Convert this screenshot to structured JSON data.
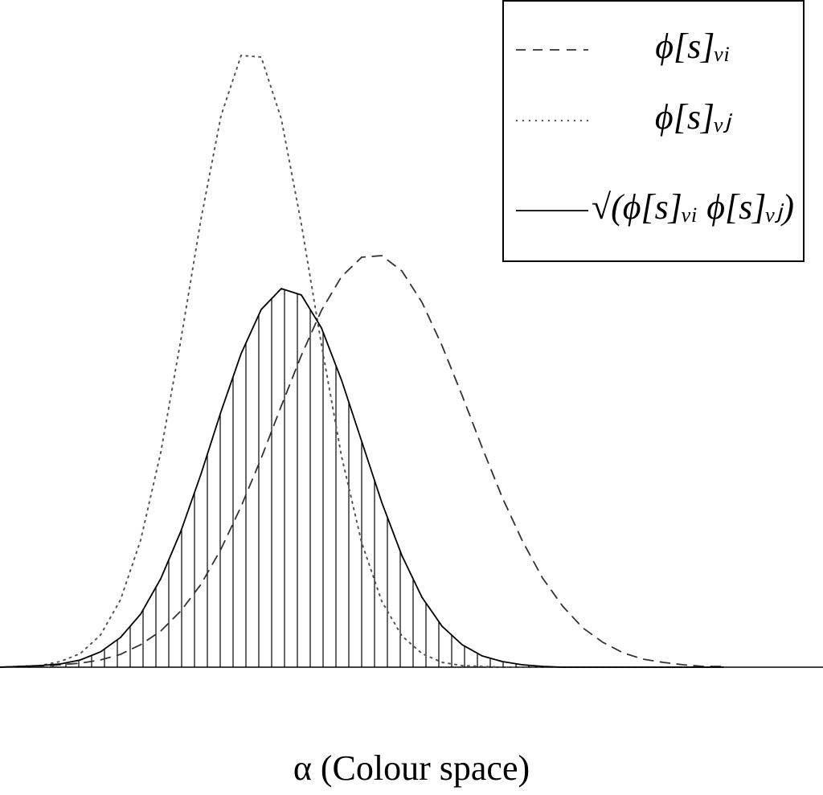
{
  "chart_data": {
    "type": "line",
    "x_label": "α (Colour space)",
    "x": [
      0,
      0.25,
      0.5,
      0.75,
      1,
      1.25,
      1.5,
      1.75,
      2,
      2.25,
      2.5,
      2.75,
      3,
      3.25,
      3.5,
      3.75,
      4,
      4.25,
      4.5,
      4.75,
      5,
      5.25,
      5.5,
      5.75,
      6,
      6.25,
      6.5,
      6.75,
      7,
      7.25,
      7.5,
      7.75,
      8,
      8.25,
      8.5,
      8.75,
      9
    ],
    "xlim": [
      0,
      10.24
    ],
    "ylim": [
      0,
      8.3
    ],
    "legend": "upper right",
    "hatch": "chart_data.series.2",
    "series": [
      {
        "name": "ϕ[s]ᵥᵢ",
        "color": "#333333",
        "style": "dashed",
        "values": [
          0,
          0.01,
          0.01,
          0.03,
          0.05,
          0.09,
          0.16,
          0.28,
          0.45,
          0.7,
          1.03,
          1.47,
          2,
          2.6,
          3.25,
          3.88,
          4.44,
          4.86,
          5.1,
          5.12,
          4.93,
          4.54,
          4,
          3.38,
          2.73,
          2.11,
          1.57,
          1.11,
          0.76,
          0.49,
          0.31,
          0.18,
          0.1,
          0.06,
          0.03,
          0.01,
          0.01
        ]
      },
      {
        "name": "ϕ[s]ᵥⱼ",
        "color": "#555555",
        "style": "dotted",
        "values": [
          0,
          0.01,
          0.02,
          0.07,
          0.17,
          0.4,
          0.84,
          1.58,
          2.67,
          4.07,
          5.57,
          6.86,
          7.61,
          7.59,
          6.82,
          5.51,
          4.01,
          2.62,
          1.55,
          0.82,
          0.39,
          0.17,
          0.06,
          0.02,
          0.01,
          0,
          0,
          0,
          0,
          0,
          0,
          0,
          0,
          0,
          0,
          0,
          0
        ]
      },
      {
        "name": "√(ϕ[s]ᵥᵢ ϕ[s]ᵥⱼ)",
        "color": "#000000",
        "style": "solid",
        "values": [
          0,
          0.01,
          0.02,
          0.04,
          0.09,
          0.19,
          0.37,
          0.66,
          1.1,
          1.69,
          2.4,
          3.18,
          3.9,
          4.45,
          4.71,
          4.63,
          4.22,
          3.57,
          2.81,
          2.05,
          1.39,
          0.87,
          0.51,
          0.28,
          0.14,
          0.07,
          0.03,
          0.01,
          0,
          0,
          0,
          0,
          0,
          0,
          0,
          0,
          0
        ]
      }
    ]
  }
}
